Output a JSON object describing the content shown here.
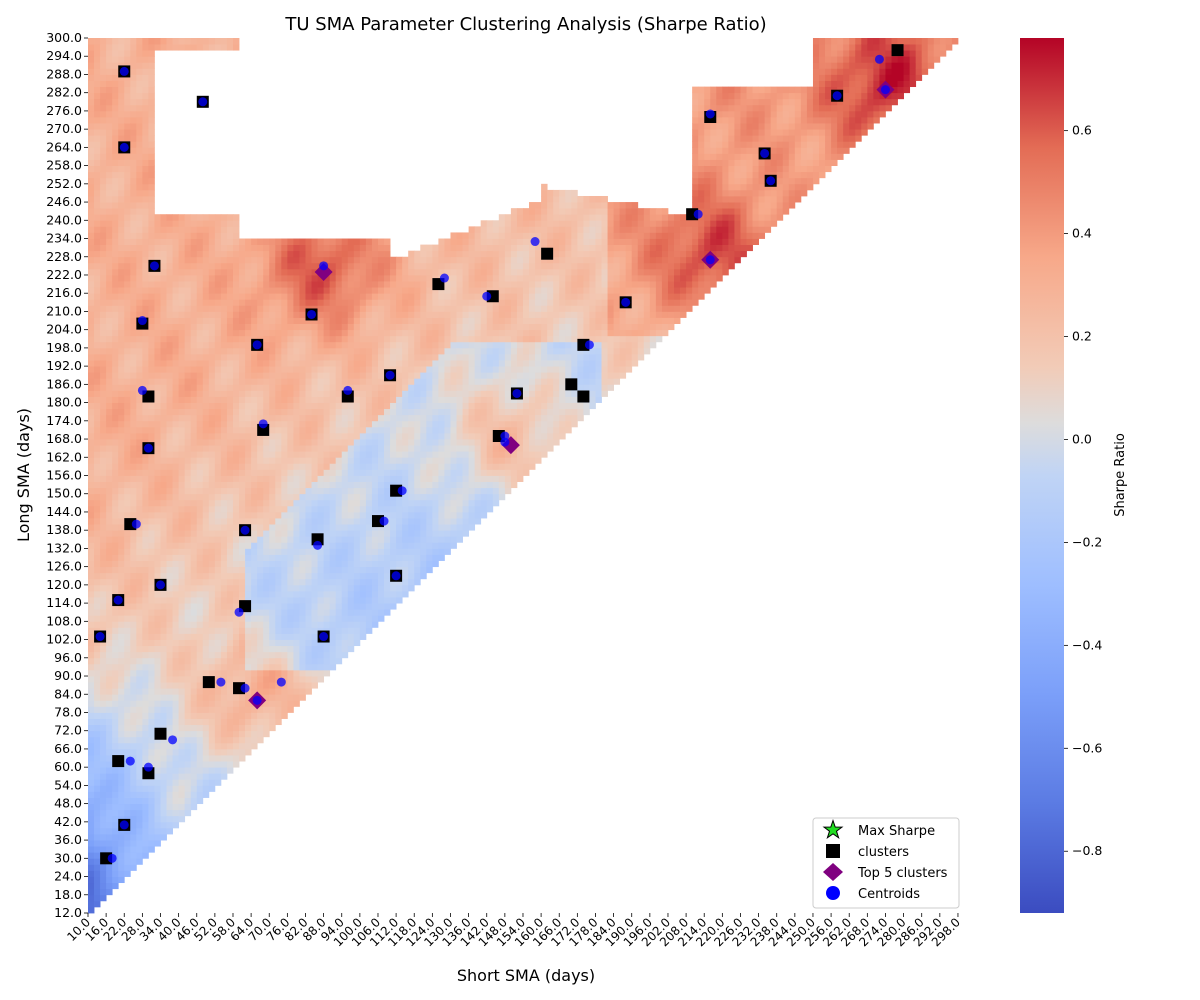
{
  "chart_data": {
    "type": "heatmap",
    "title": "TU SMA Parameter Clustering Analysis (Sharpe Ratio)",
    "xlabel": "Short SMA (days)",
    "ylabel": "Long SMA (days)",
    "x_ticks": [
      "10.0",
      "16.0",
      "22.0",
      "28.0",
      "34.0",
      "40.0",
      "46.0",
      "52.0",
      "58.0",
      "64.0",
      "70.0",
      "76.0",
      "82.0",
      "88.0",
      "94.0",
      "100.0",
      "106.0",
      "112.0",
      "118.0",
      "124.0",
      "130.0",
      "136.0",
      "142.0",
      "148.0",
      "154.0",
      "160.0",
      "166.0",
      "172.0",
      "178.0",
      "184.0",
      "190.0",
      "196.0",
      "202.0",
      "208.0",
      "214.0",
      "220.0",
      "226.0",
      "232.0",
      "238.0",
      "244.0",
      "250.0",
      "256.0",
      "262.0",
      "268.0",
      "274.0",
      "280.0",
      "286.0",
      "292.0",
      "298.0"
    ],
    "y_ticks": [
      "300.0",
      "294.0",
      "288.0",
      "282.0",
      "276.0",
      "270.0",
      "264.0",
      "258.0",
      "252.0",
      "246.0",
      "240.0",
      "234.0",
      "228.0",
      "222.0",
      "216.0",
      "210.0",
      "204.0",
      "198.0",
      "192.0",
      "186.0",
      "180.0",
      "174.0",
      "168.0",
      "162.0",
      "156.0",
      "150.0",
      "144.0",
      "138.0",
      "132.0",
      "126.0",
      "120.0",
      "114.0",
      "108.0",
      "102.0",
      "96.0",
      "90.0",
      "84.0",
      "78.0",
      "72.0",
      "66.0",
      "60.0",
      "54.0",
      "48.0",
      "42.0",
      "36.0",
      "30.0",
      "24.0",
      "18.0",
      "12.0"
    ],
    "x_range": [
      10,
      300
    ],
    "y_range": [
      12,
      300
    ],
    "colorbar": {
      "label": "Sharpe Ratio",
      "range": [
        -0.92,
        0.78
      ],
      "ticks": [
        "0.6",
        "0.4",
        "0.2",
        "0.0",
        "−0.2",
        "−0.4",
        "−0.6",
        "−0.8"
      ],
      "tick_values": [
        0.6,
        0.4,
        0.2,
        0.0,
        -0.2,
        -0.4,
        -0.6,
        -0.8
      ],
      "colormap": "coolwarm"
    },
    "legend": {
      "position": "lower-right",
      "items": [
        {
          "label": "Max Sharpe",
          "marker": "star",
          "color": "#22dd22"
        },
        {
          "label": "clusters",
          "marker": "square",
          "color": "#000000"
        },
        {
          "label": "Top 5 clusters",
          "marker": "diamond",
          "color": "#800080"
        },
        {
          "label": "Centroids",
          "marker": "circle",
          "color": "#0000ff"
        }
      ]
    },
    "clusters": [
      [
        22,
        289
      ],
      [
        48,
        279
      ],
      [
        22,
        264
      ],
      [
        32,
        225
      ],
      [
        28,
        206
      ],
      [
        30,
        182
      ],
      [
        30,
        165
      ],
      [
        24,
        140
      ],
      [
        34,
        120
      ],
      [
        20,
        115
      ],
      [
        14,
        103
      ],
      [
        22,
        41
      ],
      [
        16,
        30
      ],
      [
        20,
        62
      ],
      [
        30,
        58
      ],
      [
        34,
        71
      ],
      [
        50,
        88
      ],
      [
        60,
        86
      ],
      [
        62,
        113
      ],
      [
        62,
        138
      ],
      [
        66,
        199
      ],
      [
        68,
        171
      ],
      [
        84,
        209
      ],
      [
        86,
        135
      ],
      [
        88,
        103
      ],
      [
        96,
        182
      ],
      [
        110,
        189
      ],
      [
        126,
        219
      ],
      [
        144,
        215
      ],
      [
        146,
        169
      ],
      [
        106,
        141
      ],
      [
        112,
        123
      ],
      [
        112,
        151
      ],
      [
        152,
        183
      ],
      [
        162,
        229
      ],
      [
        170,
        186
      ],
      [
        174,
        182
      ],
      [
        174,
        199
      ],
      [
        188,
        213
      ],
      [
        210,
        242
      ],
      [
        216,
        274
      ],
      [
        234,
        262
      ],
      [
        236,
        253
      ],
      [
        258,
        281
      ],
      [
        278,
        296
      ]
    ],
    "top5_clusters": [
      [
        88,
        223
      ],
      [
        150,
        166
      ],
      [
        216,
        227
      ],
      [
        274,
        283
      ],
      [
        66,
        82
      ]
    ],
    "centroids": [
      [
        22,
        289
      ],
      [
        48,
        279
      ],
      [
        22,
        264
      ],
      [
        32,
        225
      ],
      [
        28,
        207
      ],
      [
        28,
        184
      ],
      [
        30,
        165
      ],
      [
        26,
        140
      ],
      [
        34,
        120
      ],
      [
        20,
        115
      ],
      [
        14,
        103
      ],
      [
        22,
        41
      ],
      [
        18,
        30
      ],
      [
        24,
        62
      ],
      [
        30,
        60
      ],
      [
        38,
        69
      ],
      [
        54,
        88
      ],
      [
        62,
        86
      ],
      [
        60,
        111
      ],
      [
        62,
        138
      ],
      [
        66,
        199
      ],
      [
        68,
        173
      ],
      [
        84,
        209
      ],
      [
        86,
        133
      ],
      [
        88,
        103
      ],
      [
        96,
        184
      ],
      [
        110,
        189
      ],
      [
        128,
        221
      ],
      [
        142,
        215
      ],
      [
        148,
        169
      ],
      [
        108,
        141
      ],
      [
        112,
        123
      ],
      [
        114,
        151
      ],
      [
        152,
        183
      ],
      [
        158,
        233
      ],
      [
        176,
        199
      ],
      [
        188,
        213
      ],
      [
        212,
        242
      ],
      [
        216,
        275
      ],
      [
        234,
        262
      ],
      [
        236,
        253
      ],
      [
        258,
        281
      ],
      [
        272,
        293
      ],
      [
        88,
        225
      ],
      [
        148,
        167
      ],
      [
        216,
        227
      ],
      [
        274,
        283
      ],
      [
        66,
        82
      ],
      [
        74,
        88
      ]
    ]
  }
}
